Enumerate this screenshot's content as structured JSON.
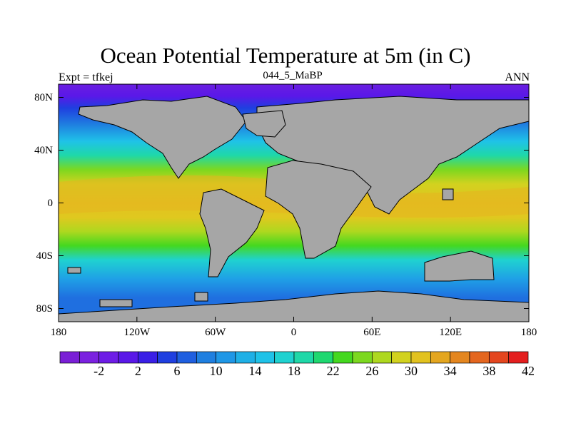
{
  "title": "Ocean Potential Temperature at 5m (in C)",
  "subtitle_left": "Expt = tfkej",
  "subtitle_center": "044_5_MaBP",
  "subtitle_right": "ANN",
  "y_axis": {
    "tick_labels": [
      "80N",
      "40N",
      "0",
      "40S",
      "80S"
    ],
    "tick_values": [
      80,
      40,
      0,
      -40,
      -80
    ],
    "range": [
      -90,
      90
    ]
  },
  "x_axis": {
    "tick_labels": [
      "180",
      "120W",
      "60W",
      "0",
      "60E",
      "120E",
      "180"
    ],
    "tick_values": [
      -180,
      -120,
      -60,
      0,
      60,
      120,
      180
    ],
    "range": [
      -180,
      180
    ]
  },
  "colorbar": {
    "labels": [
      "-2",
      "2",
      "6",
      "10",
      "14",
      "18",
      "22",
      "26",
      "30",
      "34",
      "38",
      "42"
    ],
    "label_values": [
      -2,
      2,
      6,
      10,
      14,
      18,
      22,
      26,
      30,
      34,
      38,
      42
    ],
    "bin_start": -6,
    "bin_width": 2,
    "colors": [
      "#7a1fd6",
      "#7b21e0",
      "#6e1de6",
      "#5a18e8",
      "#3a1fe6",
      "#1f3fe0",
      "#1f5fe0",
      "#1f7fe0",
      "#1f97e6",
      "#1fb0e6",
      "#1fc2e8",
      "#1fd2d0",
      "#1fd8a8",
      "#1fd870",
      "#44d81f",
      "#7cd81f",
      "#aed81f",
      "#d2d21f",
      "#e2c21f",
      "#e4a61f",
      "#e4861f",
      "#e4661f",
      "#e4461f",
      "#e41f1f"
    ]
  },
  "land_color": "#a6a6a6",
  "map_frame_color": "#000000"
}
